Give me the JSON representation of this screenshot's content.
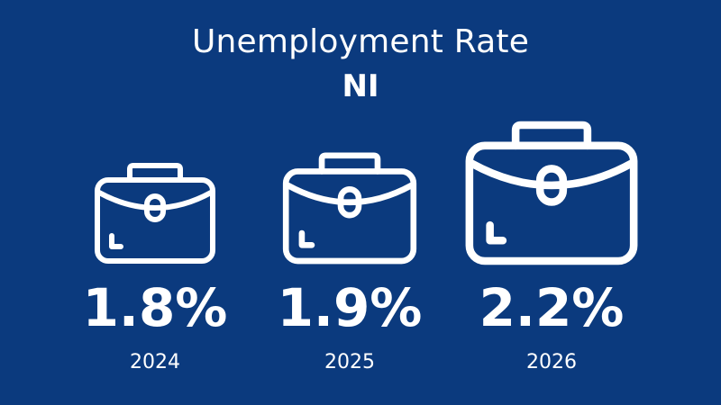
{
  "title": "Unemployment Rate",
  "subtitle": "NI",
  "colors": {
    "background": "#0b3a7e",
    "foreground": "#ffffff"
  },
  "icon": "briefcase-icon",
  "chart_data": {
    "type": "bar",
    "categories": [
      "2024",
      "2025",
      "2026"
    ],
    "values": [
      1.8,
      1.9,
      2.2
    ],
    "value_labels": [
      "1.8%",
      "1.9%",
      "2.2%"
    ],
    "unit": "%",
    "title": "Unemployment Rate",
    "subtitle": "NI",
    "xlabel": "",
    "ylabel": "",
    "grid": false,
    "legend": "none"
  }
}
